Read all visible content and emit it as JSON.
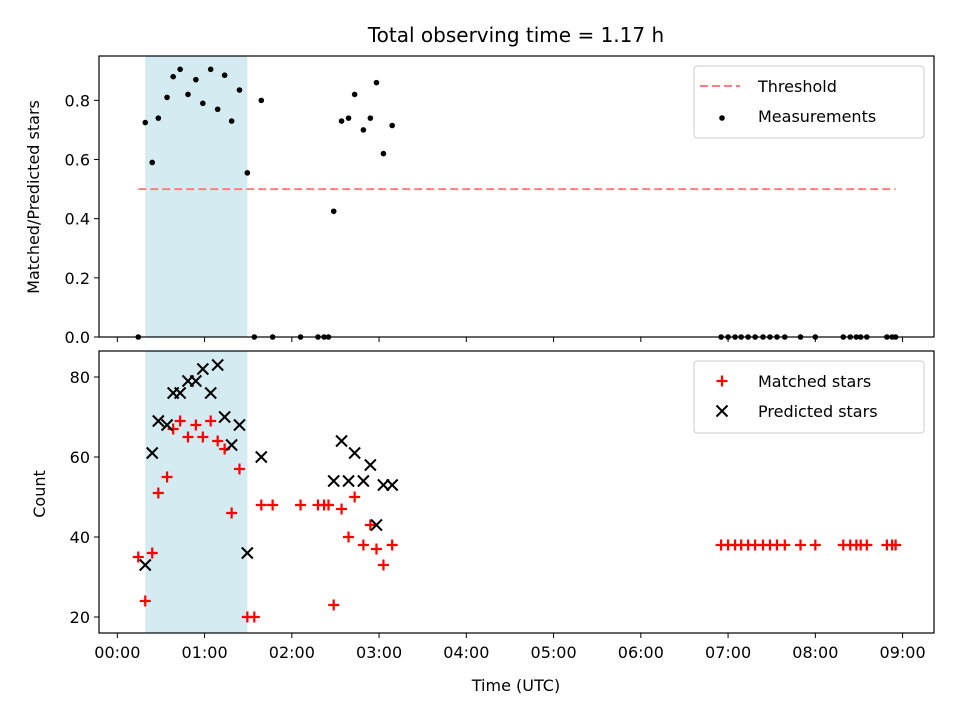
{
  "chart_data": [
    {
      "type": "scatter",
      "title": "Total observing time = 1.17 h",
      "ylabel": "Matched/Predicted stars",
      "ylim": [
        0,
        0.95
      ],
      "yticks": [
        "0.0",
        "0.2",
        "0.4",
        "0.6",
        "0.8"
      ],
      "ytick_values": [
        0,
        0.2,
        0.4,
        0.6,
        0.8
      ],
      "xlim": [
        -0.21,
        9.36
      ],
      "shaded_span": [
        0.32,
        1.49
      ],
      "shade_color": "#add8e6",
      "threshold": {
        "name": "Threshold",
        "y": 0.5,
        "x_range": [
          0.24,
          8.92
        ],
        "color": "#ff7f7f"
      },
      "legend_position": "top-right",
      "legend": [
        "Threshold",
        "Measurements"
      ],
      "series": [
        {
          "name": "Measurements",
          "color": "#000000",
          "marker": "dot",
          "x": [
            0.24,
            0.32,
            0.4,
            0.47,
            0.57,
            0.64,
            0.72,
            0.81,
            0.9,
            0.98,
            1.07,
            1.15,
            1.23,
            1.31,
            1.4,
            1.49,
            1.57,
            1.65,
            1.78,
            2.1,
            2.3,
            2.37,
            2.42,
            2.48,
            2.57,
            2.65,
            2.72,
            2.82,
            2.9,
            2.97,
            3.05,
            3.15,
            6.92,
            7.0,
            7.08,
            7.15,
            7.23,
            7.31,
            7.4,
            7.48,
            7.56,
            7.65,
            7.83,
            8.0,
            8.32,
            8.4,
            8.47,
            8.52,
            8.59,
            8.82,
            8.88,
            8.92
          ],
          "y": [
            0,
            0.725,
            0.59,
            0.74,
            0.81,
            0.88,
            0.905,
            0.82,
            0.87,
            0.79,
            0.905,
            0.77,
            0.885,
            0.73,
            0.835,
            0.555,
            0,
            0.8,
            0,
            0,
            0,
            0,
            0,
            0.425,
            0.73,
            0.74,
            0.82,
            0.7,
            0.74,
            0.86,
            0.62,
            0.715,
            0,
            0,
            0,
            0,
            0,
            0,
            0,
            0,
            0,
            0,
            0,
            0,
            0,
            0,
            0,
            0,
            0,
            0,
            0,
            0
          ]
        }
      ]
    },
    {
      "type": "scatter",
      "xlabel": "Time (UTC)",
      "ylabel": "Count",
      "ylim": [
        16,
        86.5
      ],
      "yticks": [
        "20",
        "40",
        "60",
        "80"
      ],
      "ytick_values": [
        20,
        40,
        60,
        80
      ],
      "xlim": [
        -0.21,
        9.36
      ],
      "xticks": [
        "00:00",
        "01:00",
        "02:00",
        "03:00",
        "04:00",
        "05:00",
        "06:00",
        "07:00",
        "08:00",
        "09:00"
      ],
      "xtick_values": [
        0,
        1,
        2,
        3,
        4,
        5,
        6,
        7,
        8,
        9
      ],
      "shaded_span": [
        0.32,
        1.49
      ],
      "shade_color": "#add8e6",
      "legend_position": "top-right",
      "legend": [
        "Matched stars",
        "Predicted stars"
      ],
      "series": [
        {
          "name": "Matched stars",
          "color": "#ff0000",
          "marker": "plus",
          "x": [
            0.24,
            0.32,
            0.4,
            0.47,
            0.57,
            0.64,
            0.72,
            0.81,
            0.9,
            0.98,
            1.07,
            1.15,
            1.23,
            1.31,
            1.4,
            1.49,
            1.57,
            1.65,
            1.78,
            2.1,
            2.3,
            2.37,
            2.42,
            2.48,
            2.57,
            2.65,
            2.72,
            2.82,
            2.9,
            2.97,
            3.05,
            3.15,
            6.92,
            7.0,
            7.08,
            7.15,
            7.23,
            7.31,
            7.4,
            7.48,
            7.56,
            7.65,
            7.83,
            8.0,
            8.32,
            8.4,
            8.47,
            8.52,
            8.59,
            8.82,
            8.88,
            8.92
          ],
          "y": [
            35,
            24,
            36,
            51,
            55,
            67,
            69,
            65,
            68,
            65,
            69,
            64,
            62,
            46,
            57,
            20,
            20,
            48,
            48,
            48,
            48,
            48,
            48,
            23,
            47,
            40,
            50,
            38,
            43,
            37,
            33,
            38,
            38,
            38,
            38,
            38,
            38,
            38,
            38,
            38,
            38,
            38,
            38,
            38,
            38,
            38,
            38,
            38,
            38,
            38,
            38,
            38
          ]
        },
        {
          "name": "Predicted stars",
          "color": "#000000",
          "marker": "x",
          "x": [
            0.32,
            0.4,
            0.47,
            0.57,
            0.64,
            0.72,
            0.81,
            0.9,
            0.98,
            1.07,
            1.15,
            1.23,
            1.31,
            1.4,
            1.49,
            1.65,
            2.48,
            2.57,
            2.65,
            2.72,
            2.82,
            2.9,
            2.97,
            3.05,
            3.15
          ],
          "y": [
            33,
            61,
            69,
            68,
            76,
            76,
            79,
            79,
            82,
            76,
            83,
            70,
            63,
            68,
            36,
            60,
            54,
            64,
            54,
            61,
            54,
            58,
            43,
            53,
            53
          ]
        }
      ]
    }
  ]
}
